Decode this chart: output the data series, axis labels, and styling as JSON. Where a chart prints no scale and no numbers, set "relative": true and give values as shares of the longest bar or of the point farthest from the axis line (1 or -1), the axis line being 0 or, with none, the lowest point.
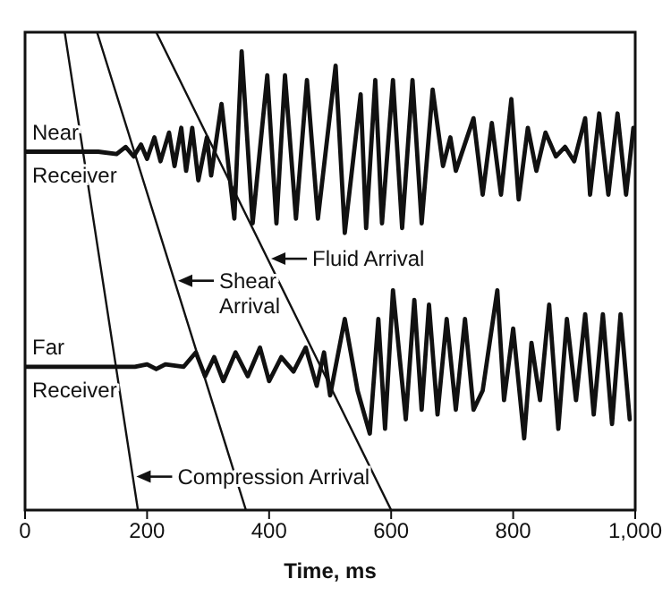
{
  "chart_data": {
    "type": "line",
    "relative": true,
    "xlabel": "Time, ms",
    "xlim": [
      0,
      1000
    ],
    "xticks": [
      0,
      200,
      400,
      600,
      800,
      {
        "value": 1000,
        "label": "1,000"
      }
    ],
    "legend": "left",
    "series": [
      {
        "name": "Near Receiver",
        "color": "#111111",
        "x": [
          0,
          60,
          120,
          150,
          165,
          178,
          190,
          200,
          212,
          222,
          236,
          245,
          256,
          264,
          274,
          284,
          298,
          305,
          322,
          343,
          355,
          373,
          397,
          412,
          426,
          444,
          462,
          480,
          509,
          524,
          550,
          559,
          574,
          585,
          603,
          618,
          635,
          650,
          668,
          685,
          697,
          706,
          735,
          750,
          765,
          780,
          797,
          809,
          824,
          838,
          853,
          870,
          885,
          900,
          918,
          926,
          941,
          956,
          971,
          985,
          997
        ],
        "values": [
          0.75,
          0.75,
          0.75,
          0.745,
          0.76,
          0.74,
          0.765,
          0.735,
          0.78,
          0.73,
          0.79,
          0.72,
          0.8,
          0.71,
          0.8,
          0.69,
          0.78,
          0.7,
          0.85,
          0.61,
          0.96,
          0.6,
          0.91,
          0.6,
          0.91,
          0.61,
          0.9,
          0.61,
          0.93,
          0.58,
          0.87,
          0.59,
          0.9,
          0.6,
          0.9,
          0.59,
          0.9,
          0.6,
          0.88,
          0.72,
          0.78,
          0.71,
          0.82,
          0.66,
          0.81,
          0.66,
          0.86,
          0.65,
          0.8,
          0.71,
          0.79,
          0.74,
          0.76,
          0.73,
          0.82,
          0.66,
          0.83,
          0.66,
          0.83,
          0.66,
          0.8
        ]
      },
      {
        "name": "Far Receiver",
        "color": "#111111",
        "x": [
          0,
          180,
          200,
          215,
          230,
          260,
          280,
          295,
          310,
          325,
          345,
          365,
          385,
          400,
          420,
          440,
          460,
          478,
          490,
          500,
          524,
          545,
          565,
          579,
          590,
          603,
          624,
          638,
          650,
          662,
          676,
          691,
          706,
          721,
          735,
          750,
          774,
          785,
          800,
          818,
          830,
          844,
          859,
          874,
          888,
          903,
          918,
          932,
          947,
          962,
          976,
          991
        ],
        "values": [
          0.3,
          0.3,
          0.305,
          0.295,
          0.305,
          0.3,
          0.33,
          0.28,
          0.32,
          0.27,
          0.33,
          0.28,
          0.34,
          0.27,
          0.32,
          0.29,
          0.34,
          0.26,
          0.33,
          0.24,
          0.4,
          0.25,
          0.16,
          0.4,
          0.17,
          0.46,
          0.19,
          0.44,
          0.21,
          0.43,
          0.2,
          0.4,
          0.21,
          0.4,
          0.21,
          0.25,
          0.46,
          0.23,
          0.38,
          0.15,
          0.35,
          0.23,
          0.43,
          0.17,
          0.4,
          0.23,
          0.41,
          0.2,
          0.41,
          0.18,
          0.41,
          0.19
        ]
      },
      {
        "name": "Compression Arrival",
        "color": "#111111",
        "x": [
          65,
          185
        ],
        "values": [
          1,
          0
        ]
      },
      {
        "name": "Shear Arrival",
        "color": "#111111",
        "x": [
          118,
          362
        ],
        "values": [
          1,
          0
        ]
      },
      {
        "name": "Fluid Arrival",
        "color": "#111111",
        "x": [
          215,
          600
        ],
        "values": [
          1,
          0
        ]
      }
    ]
  }
}
